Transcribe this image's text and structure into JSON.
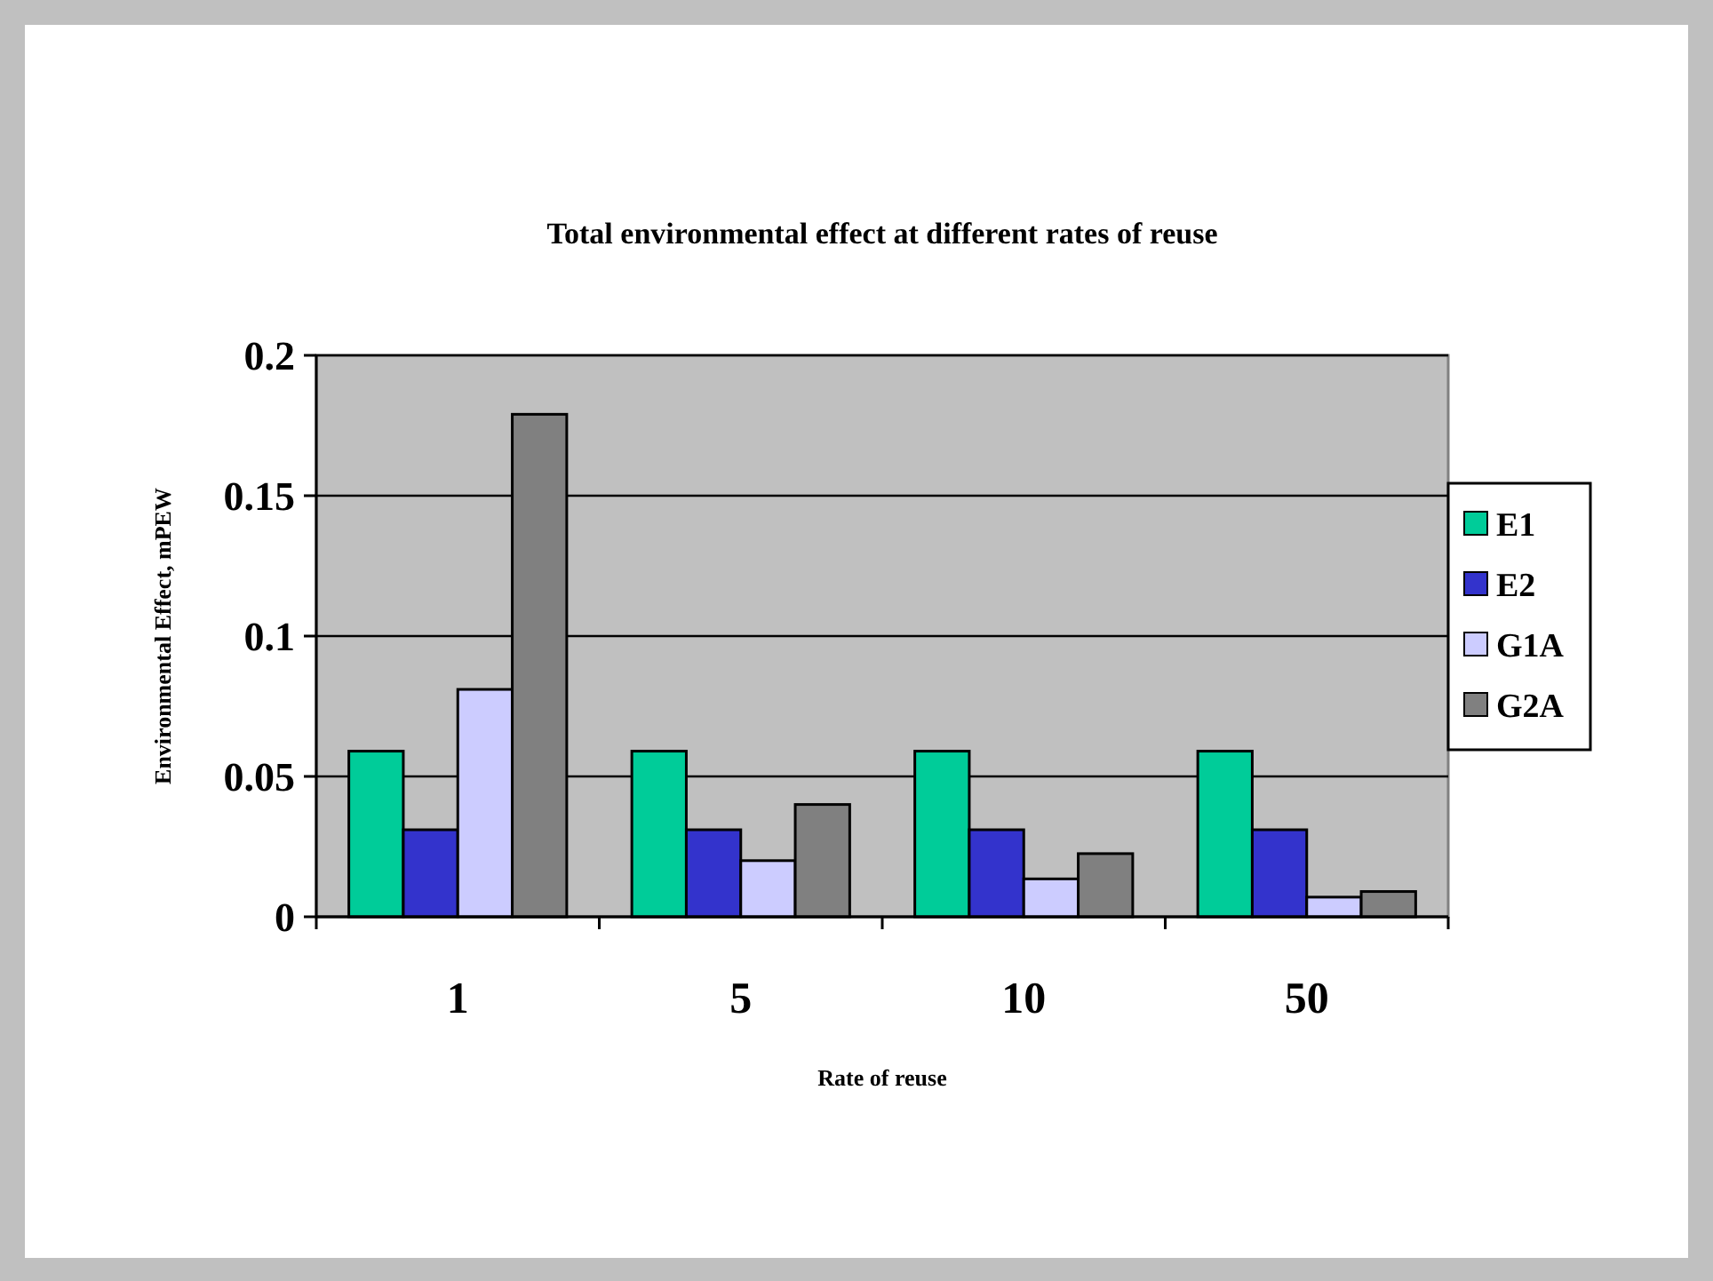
{
  "chart_data": {
    "type": "bar",
    "title": "Total environmental effect at different rates of reuse",
    "xlabel": "Rate of reuse",
    "ylabel": "Environmental Effect, mPEW",
    "categories": [
      "1",
      "5",
      "10",
      "50"
    ],
    "series": [
      {
        "name": "E1",
        "color": "#00cc99",
        "values": [
          0.059,
          0.059,
          0.059,
          0.059
        ]
      },
      {
        "name": "E2",
        "color": "#3333cc",
        "values": [
          0.031,
          0.031,
          0.031,
          0.031
        ]
      },
      {
        "name": "G1A",
        "color": "#ccccff",
        "values": [
          0.081,
          0.02,
          0.0135,
          0.007
        ]
      },
      {
        "name": "G2A",
        "color": "#808080",
        "values": [
          0.179,
          0.04,
          0.0225,
          0.009
        ]
      }
    ],
    "ylim": [
      0,
      0.2
    ],
    "yticks": [
      0,
      0.05,
      0.1,
      0.15,
      0.2
    ],
    "grid": "y",
    "legend": "right"
  }
}
